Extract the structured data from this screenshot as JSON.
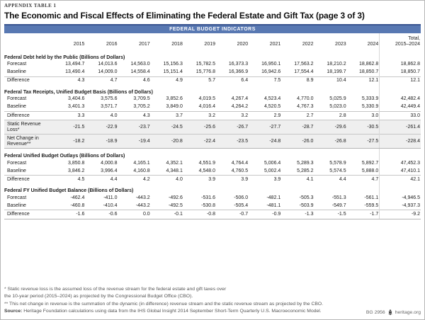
{
  "kicker": "APPENDIX TABLE 1",
  "title": "The Economic and Fiscal Effects of Eliminating the Federal Estate and Gift Tax (page 3 of 3)",
  "banner": {
    "label": "FEDERAL BUDGET INDICATORS"
  },
  "colors": {
    "banner_bg": "#5878b2",
    "banner_border": "#3a5590",
    "row_shade": "#efefef",
    "rule": "#c6c6c6",
    "banner_text": "#ffffff"
  },
  "table": {
    "year_columns": [
      "2015",
      "2016",
      "2017",
      "2018",
      "2019",
      "2020",
      "2021",
      "2022",
      "2023",
      "2024"
    ],
    "total_column": {
      "line1": "Total,",
      "line2": "2015–2024"
    },
    "sections": [
      {
        "header": "Federal Debt held by the Public (Billions of Dollars)",
        "rows": [
          {
            "label": "Forecast",
            "values": [
              "13,494.7",
              "14,013.6",
              "14,563.0",
              "15,156.3",
              "15,782.5",
              "16,373.3",
              "16,950.1",
              "17,563.2",
              "18,210.2",
              "18,862.8",
              "18,862.8"
            ]
          },
          {
            "label": "Baseline",
            "values": [
              "13,490.4",
              "14,009.0",
              "14,558.4",
              "15,151.4",
              "15,776.8",
              "16,366.9",
              "16,942.6",
              "17,554.4",
              "18,199.7",
              "18,850.7",
              "18,850.7"
            ]
          },
          {
            "label": "Difference",
            "topline": true,
            "values": [
              "4.3",
              "4.7",
              "4.6",
              "4.9",
              "5.7",
              "6.4",
              "7.5",
              "8.9",
              "10.4",
              "12.1",
              "12.1"
            ]
          }
        ]
      },
      {
        "header": "Federal Tax Receipts, Unified Budget Basis (Billions of Dollars)",
        "rows": [
          {
            "label": "Forecast",
            "values": [
              "3,404.6",
              "3,575.6",
              "3,709.5",
              "3,852.6",
              "4,019.5",
              "4,267.4",
              "4,523.4",
              "4,770.0",
              "5,025.9",
              "5,333.9",
              "42,482.4"
            ]
          },
          {
            "label": "Baseline",
            "values": [
              "3,401.3",
              "3,571.7",
              "3,705.2",
              "3,849.0",
              "4,016.4",
              "4,264.2",
              "4,520.5",
              "4,767.3",
              "5,023.0",
              "5,330.9",
              "42,449.4"
            ]
          },
          {
            "label": "Difference",
            "topline": true,
            "values": [
              "3.3",
              "4.0",
              "4.3",
              "3.7",
              "3.2",
              "3.2",
              "2.9",
              "2.7",
              "2.8",
              "3.0",
              "33.0"
            ]
          },
          {
            "label": "Static Revenue Loss*",
            "topline": true,
            "shaded": true,
            "values": [
              "-21.5",
              "-22.9",
              "-23.7",
              "-24.5",
              "-25.6",
              "-26.7",
              "-27.7",
              "-28.7",
              "-29.6",
              "-30.5",
              "-261.4"
            ]
          },
          {
            "label": "Net Change in Revenue**",
            "topline": true,
            "shaded": true,
            "bottomline": true,
            "values": [
              "-18.2",
              "-18.9",
              "-19.4",
              "-20.8",
              "-22.4",
              "-23.5",
              "-24.8",
              "-26.0",
              "-26.8",
              "-27.5",
              "-228.4"
            ]
          }
        ]
      },
      {
        "header": "Federal Unified Budget Outlays (Billions of Dollars)",
        "rows": [
          {
            "label": "Forecast",
            "values": [
              "3,850.8",
              "4,000.8",
              "4,165.1",
              "4,352.1",
              "4,551.9",
              "4,764.4",
              "5,006.4",
              "5,289.3",
              "5,578.9",
              "5,892.7",
              "47,452.3"
            ]
          },
          {
            "label": "Baseline",
            "values": [
              "3,846.2",
              "3,996.4",
              "4,160.8",
              "4,348.1",
              "4,548.0",
              "4,760.5",
              "5,002.4",
              "5,285.2",
              "5,574.5",
              "5,888.0",
              "47,410.1"
            ]
          },
          {
            "label": "Difference",
            "topline": true,
            "values": [
              "4.5",
              "4.4",
              "4.2",
              "4.0",
              "3.9",
              "3.9",
              "3.9",
              "4.1",
              "4.4",
              "4.7",
              "42.1"
            ]
          }
        ]
      },
      {
        "header": "Federal FY Unified Budget Balance (Billions of Dollars)",
        "rows": [
          {
            "label": "Forecast",
            "values": [
              "-462.4",
              "-411.0",
              "-443.2",
              "-492.6",
              "-531.6",
              "-506.0",
              "-482.1",
              "-505.3",
              "-551.3",
              "-561.1",
              "-4,946.5"
            ]
          },
          {
            "label": "Baseline",
            "values": [
              "-460.8",
              "-410.4",
              "-443.2",
              "-492.5",
              "-530.8",
              "-505.4",
              "-481.1",
              "-503.9",
              "-549.7",
              "-559.5",
              "-4,937.3"
            ]
          },
          {
            "label": "Difference",
            "topline": true,
            "bottomline": true,
            "values": [
              "-1.6",
              "-0.6",
              "0.0",
              "-0.1",
              "-0.8",
              "-0.7",
              "-0.9",
              "-1.3",
              "-1.5",
              "-1.7",
              "-9.2"
            ]
          }
        ]
      }
    ]
  },
  "footnotes": {
    "line1": "* Static revenue loss is the assumed loss of the revenue stream for the federal estate and gift taxes over",
    "line2": "the 10-year period (2015–2024) as projected by the Congressional Budget Office (CBO).",
    "line3": "** This net change in revenue is the summation of the dynamic (in difference) revenue stream and the static revenue stream as projected by the CBO.",
    "source_label": "Source:",
    "source_text": " Heritage Foundation calculations using data from the IHS Global Insight 2014 September Short-Term Quarterly U.S. Macroeconomic Model."
  },
  "footer": {
    "doc_id": "BG 2956",
    "logo_icon": "heritage-logo-icon",
    "site": "heritage.org"
  }
}
